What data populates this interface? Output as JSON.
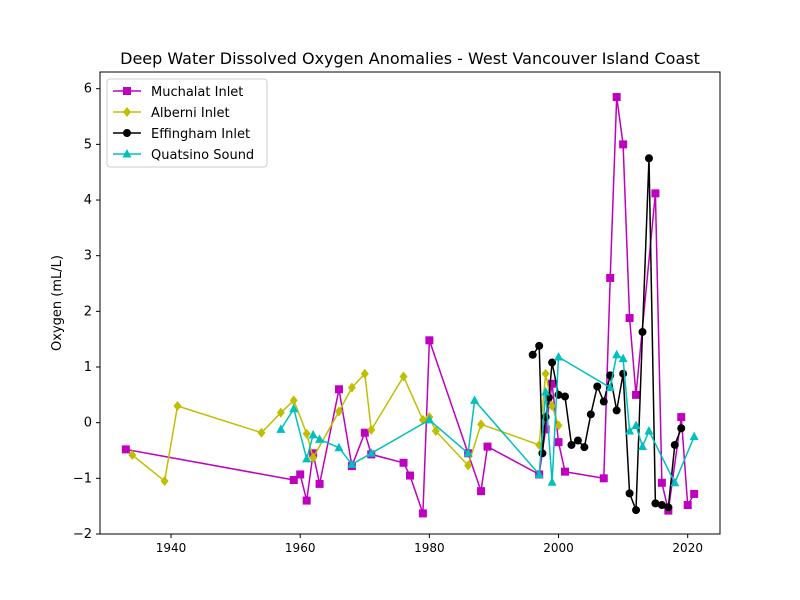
{
  "chart_data": {
    "type": "line",
    "title": "Deep Water Dissolved Oxygen Anomalies - West Vancouver Island Coast",
    "xlabel": "",
    "ylabel": "Oxygen (mL/L)",
    "xlim": [
      1929,
      2025
    ],
    "ylim": [
      -2,
      6.3
    ],
    "xticks": [
      1940,
      1960,
      1980,
      2000,
      2020
    ],
    "yticks": [
      -2,
      -1,
      0,
      1,
      2,
      3,
      4,
      5,
      6
    ],
    "grid": false,
    "legend_position": "top-left",
    "series": [
      {
        "name": "Muchalat Inlet",
        "color": "#bf00bf",
        "marker": "square",
        "x": [
          1933,
          1959,
          1960,
          1961,
          1962,
          1963,
          1966,
          1968,
          1970,
          1971,
          1976,
          1977,
          1979,
          1980,
          1986,
          1988,
          1989,
          1997,
          1998,
          1999,
          2000,
          2001,
          2007,
          2008,
          2009,
          2010,
          2011,
          2012,
          2015,
          2016,
          2017,
          2019,
          2020,
          2021
        ],
        "y": [
          -0.48,
          -1.03,
          -0.93,
          -1.4,
          -0.55,
          -1.1,
          0.6,
          -0.78,
          -0.18,
          -0.57,
          -0.72,
          -0.95,
          -1.63,
          1.48,
          -0.55,
          -1.23,
          -0.43,
          -0.93,
          -0.12,
          0.7,
          -0.35,
          -0.88,
          -1.0,
          2.6,
          5.85,
          5.0,
          1.88,
          0.5,
          4.12,
          -1.08,
          -1.58,
          0.1,
          -1.48,
          -1.28
        ]
      },
      {
        "name": "Alberni Inlet",
        "color": "#bfbf00",
        "marker": "diamond",
        "x": [
          1934,
          1939,
          1941,
          1954,
          1957,
          1959,
          1961,
          1962,
          1966,
          1968,
          1970,
          1971,
          1976,
          1979,
          1980,
          1981,
          1986,
          1988,
          1997,
          1998,
          1999,
          2000
        ],
        "y": [
          -0.58,
          -1.05,
          0.3,
          -0.18,
          0.18,
          0.4,
          -0.2,
          -0.63,
          0.2,
          0.63,
          0.88,
          -0.13,
          0.83,
          0.05,
          0.1,
          -0.15,
          -0.77,
          -0.03,
          -0.4,
          0.88,
          0.3,
          -0.05
        ]
      },
      {
        "name": "Effingham Inlet",
        "color": "#000000",
        "marker": "circle",
        "x": [
          1996,
          1997,
          1997.5,
          1998,
          1998.5,
          1999,
          2000,
          2001,
          2002,
          2003,
          2004,
          2005,
          2006,
          2007,
          2008,
          2009,
          2010,
          2011,
          2012,
          2013,
          2014,
          2015,
          2016,
          2017,
          2018,
          2019
        ],
        "y": [
          1.22,
          1.38,
          -0.55,
          0.1,
          0.45,
          1.08,
          0.5,
          0.47,
          -0.4,
          -0.32,
          -0.44,
          0.15,
          0.65,
          0.38,
          0.85,
          0.22,
          0.88,
          -1.27,
          -1.57,
          1.63,
          4.75,
          -1.45,
          -1.48,
          -1.52,
          -0.4,
          -0.1
        ]
      },
      {
        "name": "Quatsino Sound",
        "color": "#00bfbf",
        "marker": "triangle",
        "x": [
          1957,
          1959,
          1961,
          1962,
          1963,
          1966,
          1968,
          1971,
          1980,
          1986,
          1987,
          1997,
          1998,
          1999,
          2000,
          2008,
          2009,
          2010,
          2011,
          2012,
          2013,
          2014,
          2018,
          2021
        ],
        "y": [
          -0.12,
          0.25,
          -0.65,
          -0.22,
          -0.3,
          -0.45,
          -0.75,
          -0.55,
          0.05,
          -0.55,
          0.4,
          -0.93,
          0.55,
          -1.07,
          1.18,
          0.63,
          1.22,
          1.15,
          -0.15,
          -0.05,
          -0.43,
          -0.15,
          -1.08,
          -0.25
        ]
      }
    ]
  }
}
